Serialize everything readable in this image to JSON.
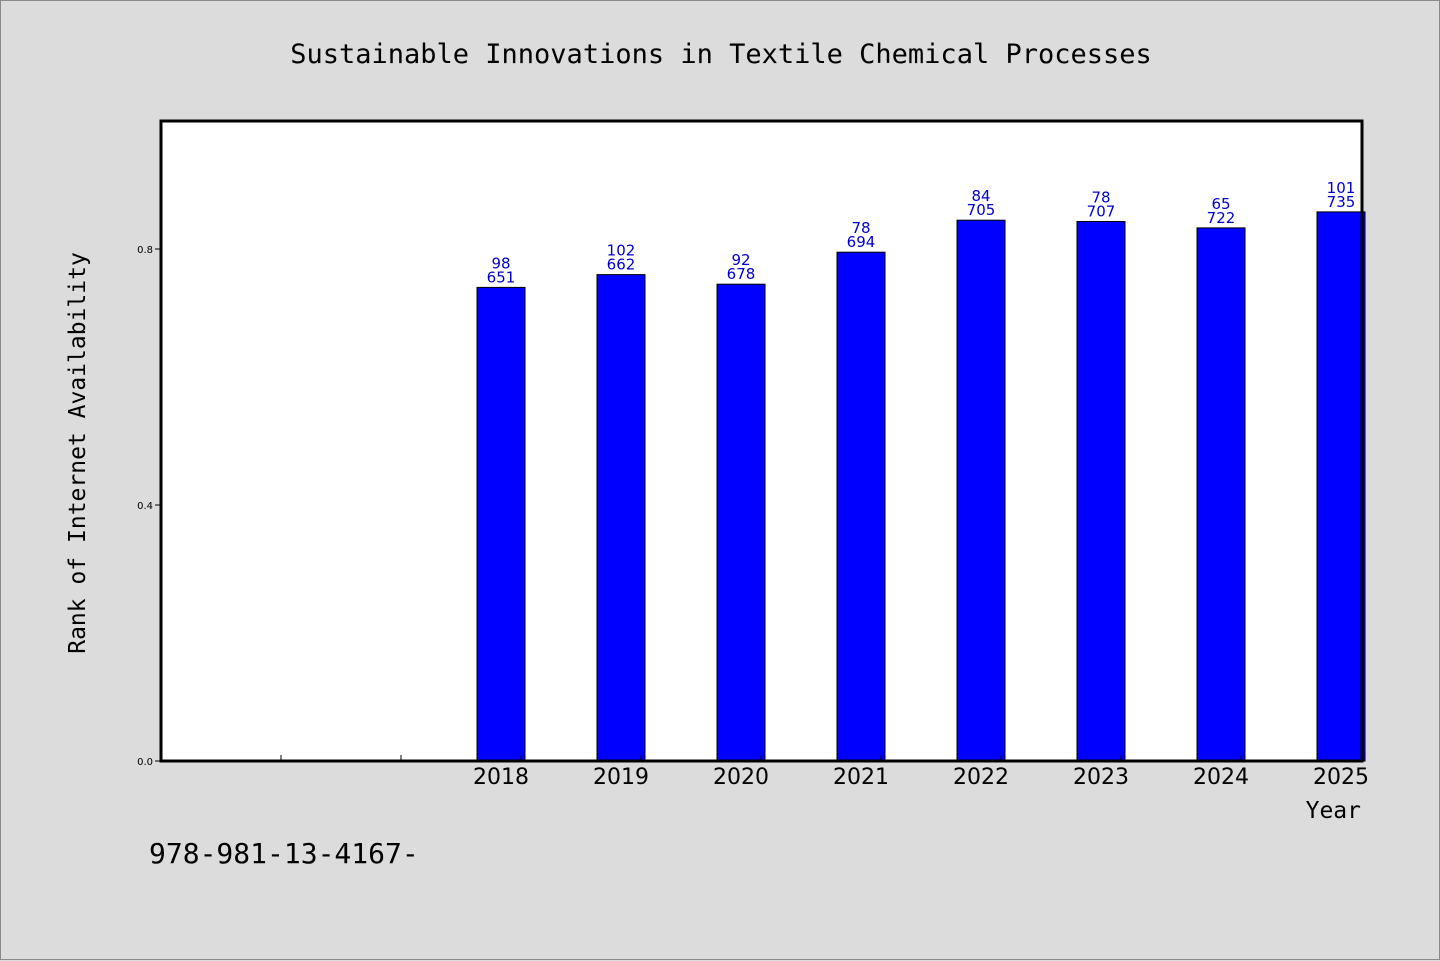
{
  "chart_data": {
    "type": "bar",
    "title": "Sustainable Innovations in Textile Chemical Processes",
    "xlabel": "Year",
    "ylabel": "Rank of Internet Availability",
    "categories": [
      "",
      "",
      "2018",
      "2019",
      "2020",
      "2021",
      "2022",
      "2023",
      "2024",
      "2025"
    ],
    "values": [
      null,
      null,
      0.74,
      0.76,
      0.745,
      0.795,
      0.845,
      0.843,
      0.833,
      0.858
    ],
    "data_labels_top": [
      "",
      "",
      "98",
      "102",
      "92",
      "78",
      "84",
      "78",
      "65",
      "101"
    ],
    "data_labels_bottom": [
      "",
      "",
      "651",
      "662",
      "678",
      "694",
      "705",
      "707",
      "722",
      "735"
    ],
    "y_ticks": [
      "0.0",
      "0.4",
      "0.8"
    ],
    "y_tick_values": [
      0.0,
      0.4,
      0.8
    ],
    "ylim": [
      0,
      1.0
    ],
    "grid": false,
    "bar_color": "#0000ff",
    "label_color": "#0000cc"
  },
  "footer": {
    "text": "978-981-13-4167-"
  }
}
